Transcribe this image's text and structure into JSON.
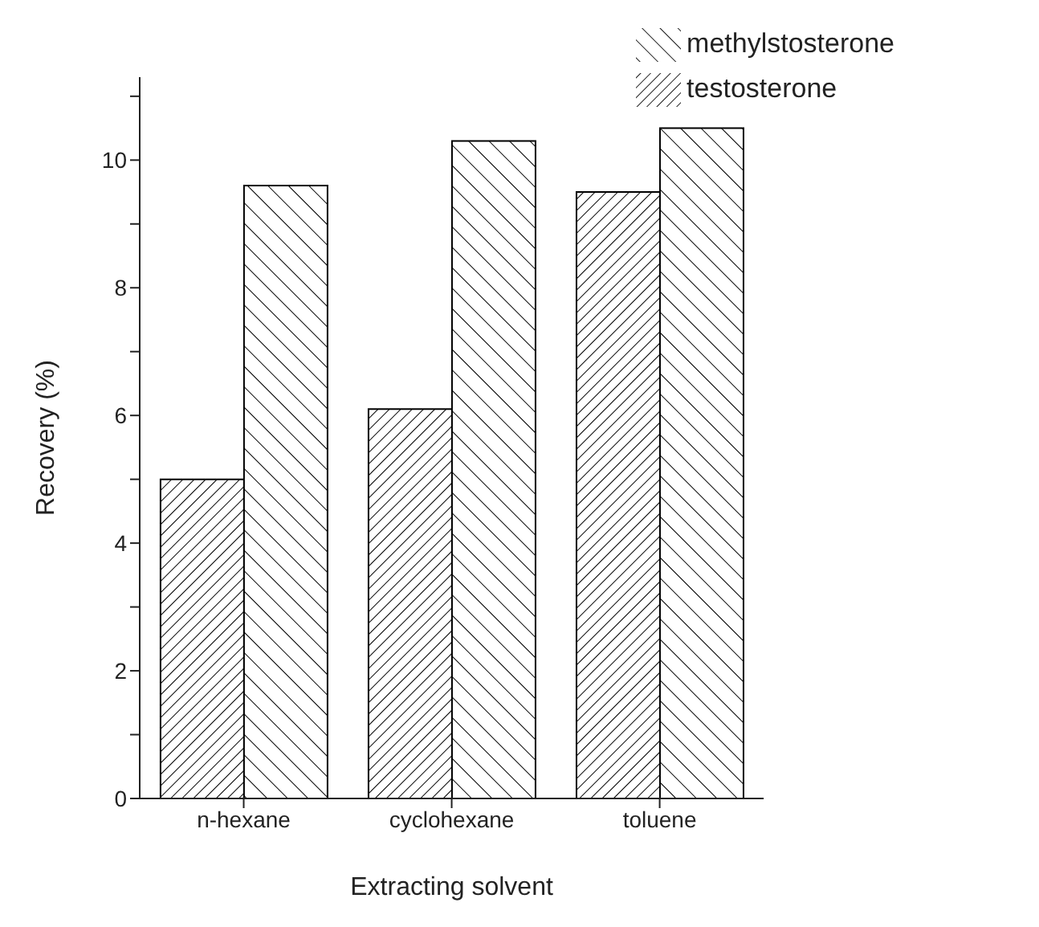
{
  "chart_data": {
    "type": "bar",
    "xlabel": "Extracting solvent",
    "ylabel": "Recovery (%)",
    "categories": [
      "n-hexane",
      "cyclohexane",
      "toluene"
    ],
    "series": [
      {
        "name": "testosterone",
        "color": "#000000",
        "values": [
          5.0,
          6.1,
          9.5
        ]
      },
      {
        "name": "methylstosterone",
        "color": "#000000",
        "values": [
          9.6,
          10.3,
          10.5
        ]
      }
    ],
    "ylim": [
      0,
      11.3
    ],
    "yticks": [
      0,
      {
        "value": 1,
        "label": null
      },
      2,
      {
        "value": 3,
        "label": null
      },
      4,
      {
        "value": 5,
        "label": null
      },
      6,
      {
        "value": 7,
        "label": null
      },
      8,
      {
        "value": 9,
        "label": null
      },
      10,
      {
        "value": 11,
        "label": null
      }
    ],
    "grid": false,
    "legend": "top right"
  }
}
